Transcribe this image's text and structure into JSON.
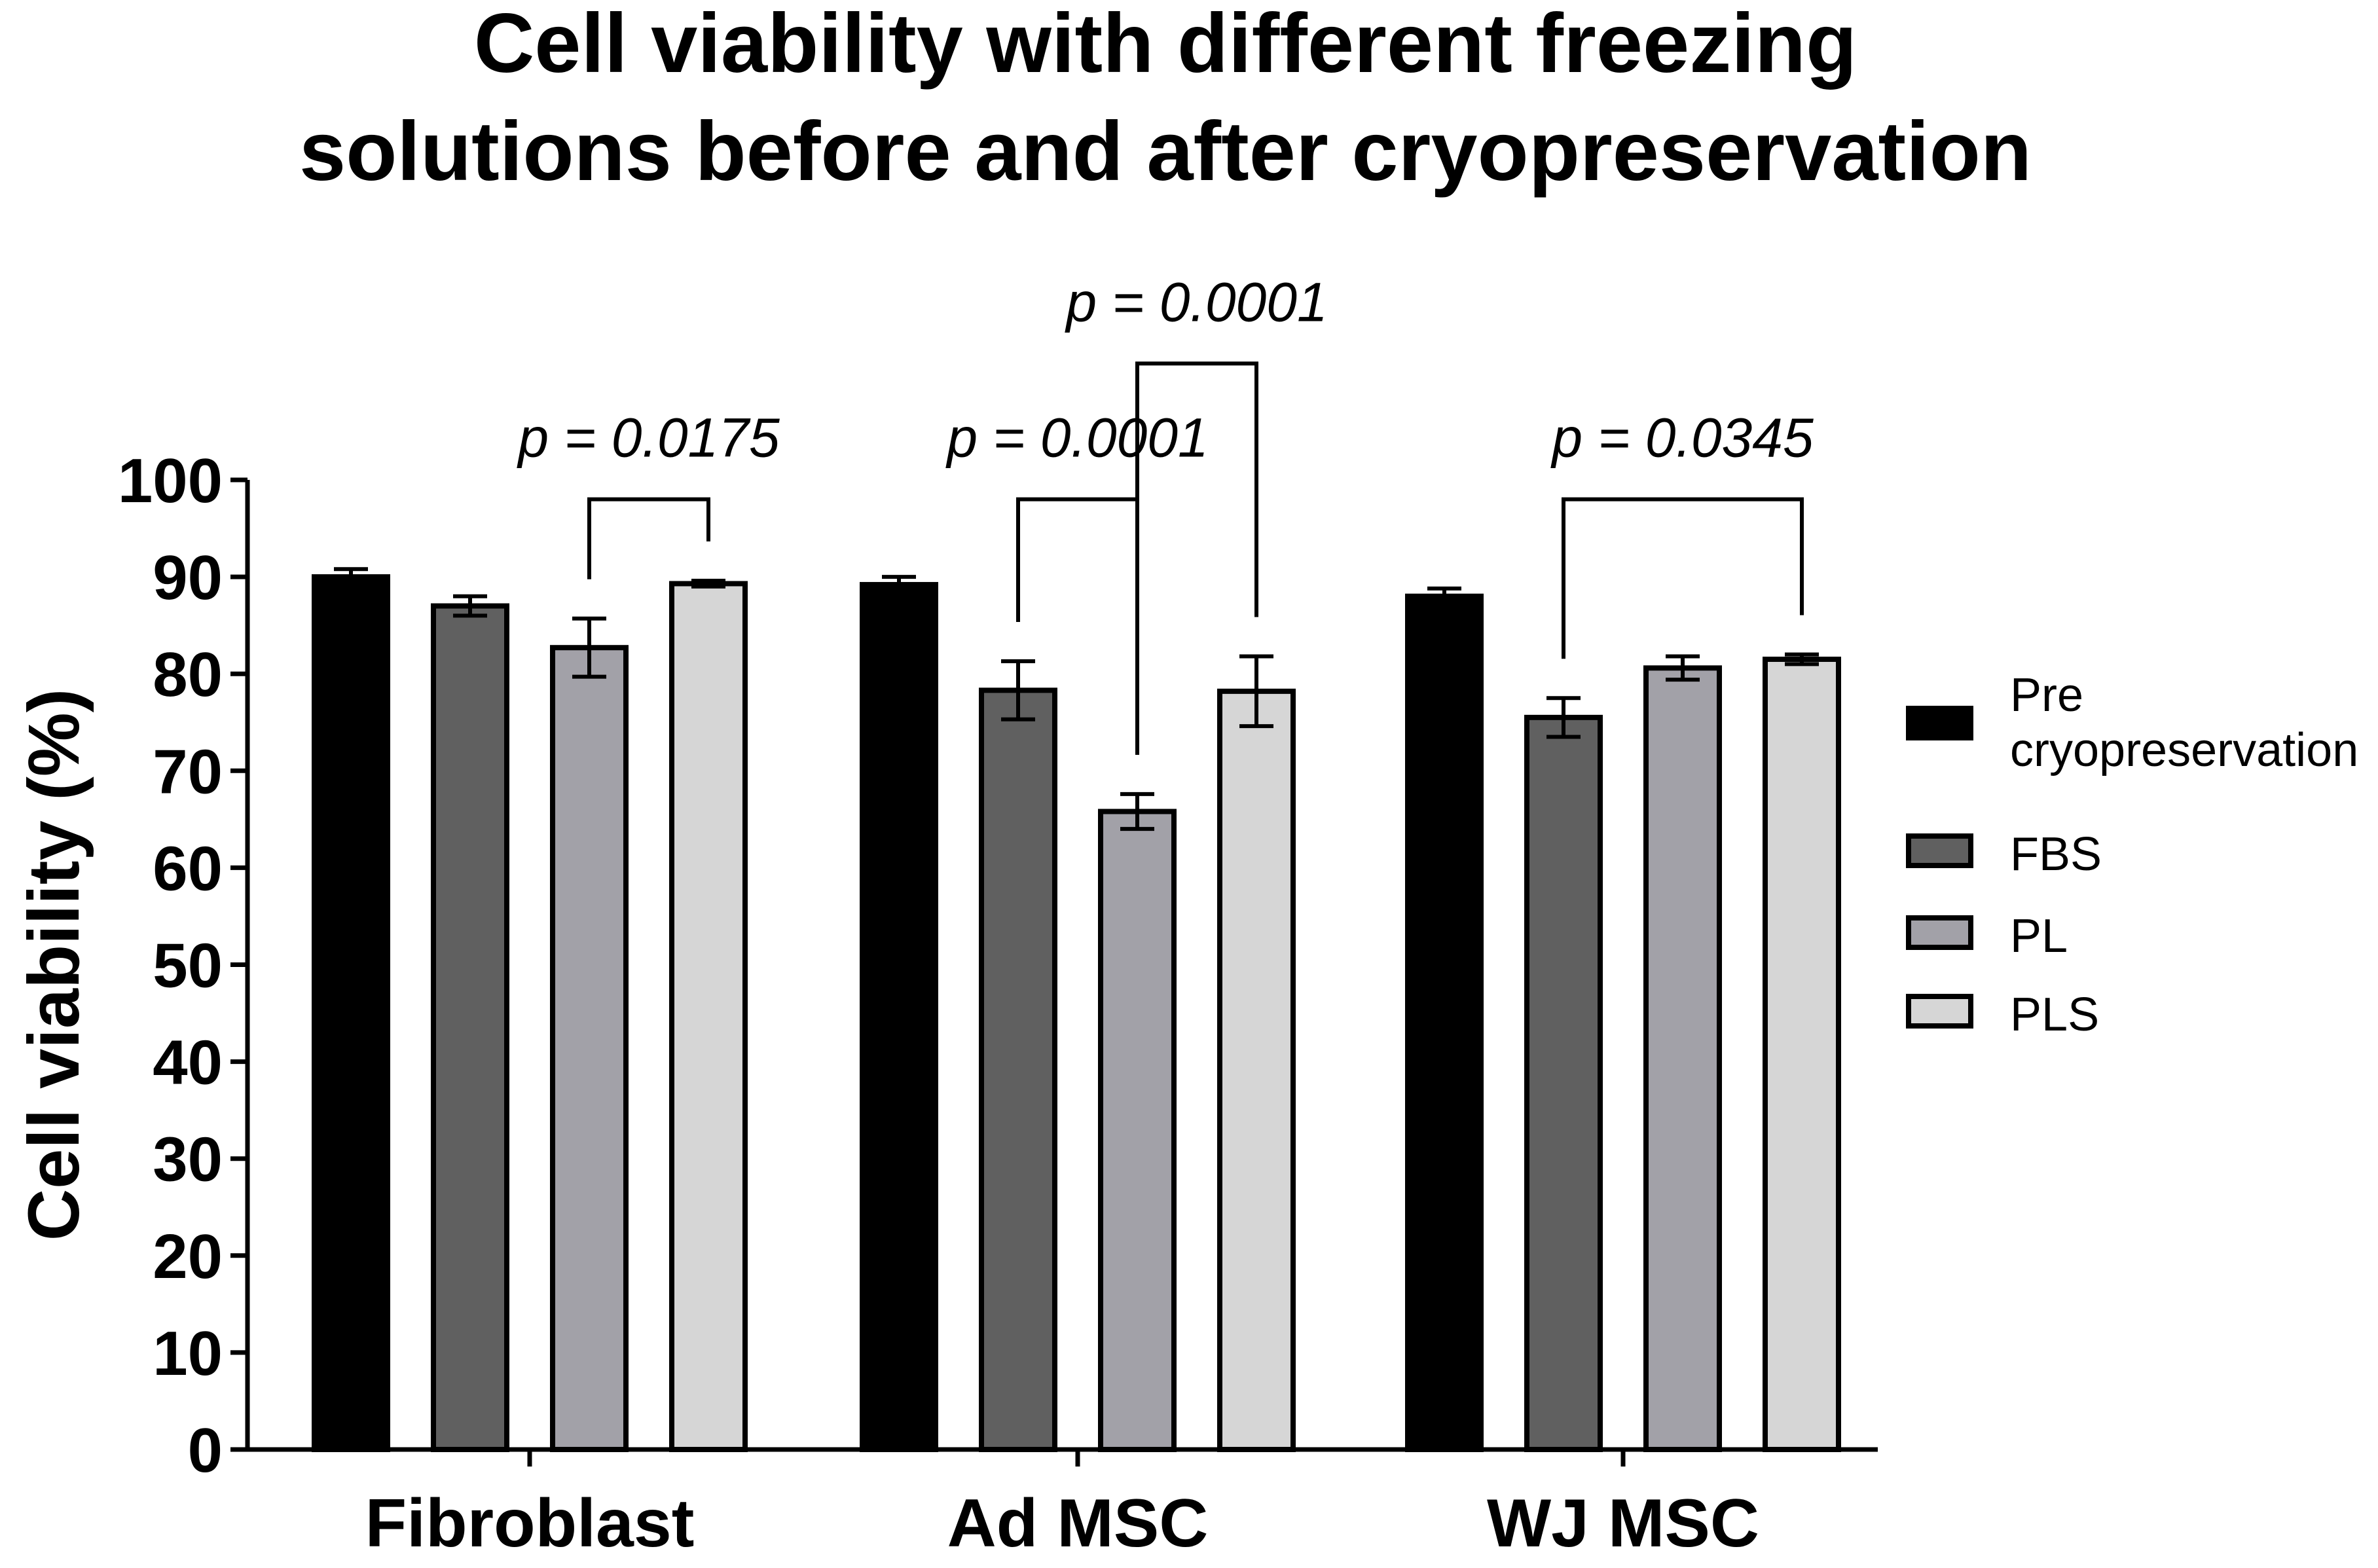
{
  "chart_data": {
    "type": "bar",
    "title_lines": [
      "Cell viability with different freezing",
      "solutions before and after cryopreservation"
    ],
    "xlabel": "",
    "ylabel": "Cell viability (%)",
    "ylim": [
      0,
      100
    ],
    "yticks": [
      0,
      10,
      20,
      30,
      40,
      50,
      60,
      70,
      80,
      90,
      100
    ],
    "categories": [
      "Fibroblast",
      "Ad MSC",
      "WJ MSC"
    ],
    "series": [
      {
        "name": "Pre cryopreservation",
        "legend_lines": [
          "Pre",
          "cryopreservation"
        ],
        "color": "#000000",
        "values": [
          90.0,
          89.2,
          88.0
        ],
        "errors": [
          0.8,
          0.8,
          0.8
        ]
      },
      {
        "name": "FBS",
        "legend_lines": [
          "FBS"
        ],
        "color": "#606060",
        "values": [
          87.0,
          78.3,
          75.5
        ],
        "errors": [
          1.0,
          3.0,
          2.0
        ]
      },
      {
        "name": "PL",
        "legend_lines": [
          "PL"
        ],
        "color": "#a2a1a8",
        "values": [
          82.7,
          65.8,
          80.6
        ],
        "errors": [
          3.0,
          1.8,
          1.2
        ]
      },
      {
        "name": "PLS",
        "legend_lines": [
          "PLS"
        ],
        "color": "#d6d6d6",
        "values": [
          89.3,
          78.2,
          81.5
        ],
        "errors": [
          0.3,
          3.6,
          0.5
        ]
      }
    ],
    "significance": [
      {
        "category": 0,
        "from_series": 2,
        "to_series": 3,
        "label": "p = 0.0175",
        "level": 98
      },
      {
        "category": 1,
        "from_series": 1,
        "to_series": 2,
        "label": "p = 0.0001",
        "level": 98
      },
      {
        "category": 1,
        "from_series": 2,
        "to_series": 3,
        "label": "p = 0.0001",
        "level": 112
      },
      {
        "category": 2,
        "from_series": 1,
        "to_series": 3,
        "label": "p = 0.0345",
        "level": 98
      }
    ]
  }
}
